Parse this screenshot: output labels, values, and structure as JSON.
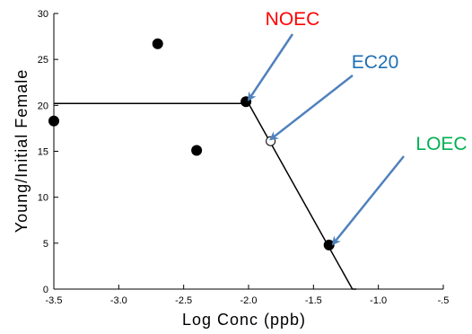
{
  "chart_data": {
    "type": "scatter",
    "title": "",
    "xlabel": "Log Conc (ppb)",
    "ylabel": "Young/Initial Female",
    "xlim": [
      -3.5,
      -0.5
    ],
    "ylim": [
      0,
      30
    ],
    "x_ticks": [
      {
        "value": -3.5,
        "label": "-3.5"
      },
      {
        "value": -3.0,
        "label": "-3.0"
      },
      {
        "value": -2.5,
        "label": "-2.5"
      },
      {
        "value": -2.0,
        "label": "-2.0"
      },
      {
        "value": -1.5,
        "label": "-1.5"
      },
      {
        "value": -1.0,
        "label": "-1.0"
      },
      {
        "value": -0.5,
        "label": "-.5"
      }
    ],
    "y_ticks": [
      {
        "value": 0,
        "label": "0"
      },
      {
        "value": 5,
        "label": "5"
      },
      {
        "value": 10,
        "label": "10"
      },
      {
        "value": 15,
        "label": "15"
      },
      {
        "value": 20,
        "label": "20"
      },
      {
        "value": 25,
        "label": "25"
      },
      {
        "value": 30,
        "label": "30"
      }
    ],
    "points": [
      {
        "x": -3.5,
        "y": 18.3
      },
      {
        "x": -2.7,
        "y": 26.7
      },
      {
        "x": -2.4,
        "y": 15.1
      },
      {
        "x": -2.02,
        "y": 20.4
      },
      {
        "x": -1.38,
        "y": 4.8
      }
    ],
    "ec_point": {
      "x": -1.83,
      "y": 16.1
    },
    "fit_line": [
      {
        "x": -3.5,
        "y": 20.2
      },
      {
        "x": -2.0,
        "y": 20.2
      },
      {
        "x": -1.2,
        "y": 0
      },
      {
        "x": -1.17,
        "y": 0
      }
    ],
    "annotations": [
      {
        "label": "NOEC",
        "color": "#ff0000",
        "arrow_color": "#4f81bd",
        "target": {
          "x": -2.0,
          "y": 20.6
        }
      },
      {
        "label": "EC20",
        "color": "#1f6fb5",
        "arrow_color": "#4f81bd",
        "target": {
          "x": -1.83,
          "y": 16.3
        }
      },
      {
        "label": "LOEC",
        "color": "#00b050",
        "arrow_color": "#4f81bd",
        "target": {
          "x": -1.35,
          "y": 4.9
        }
      }
    ],
    "grid": false,
    "legend": "none"
  }
}
